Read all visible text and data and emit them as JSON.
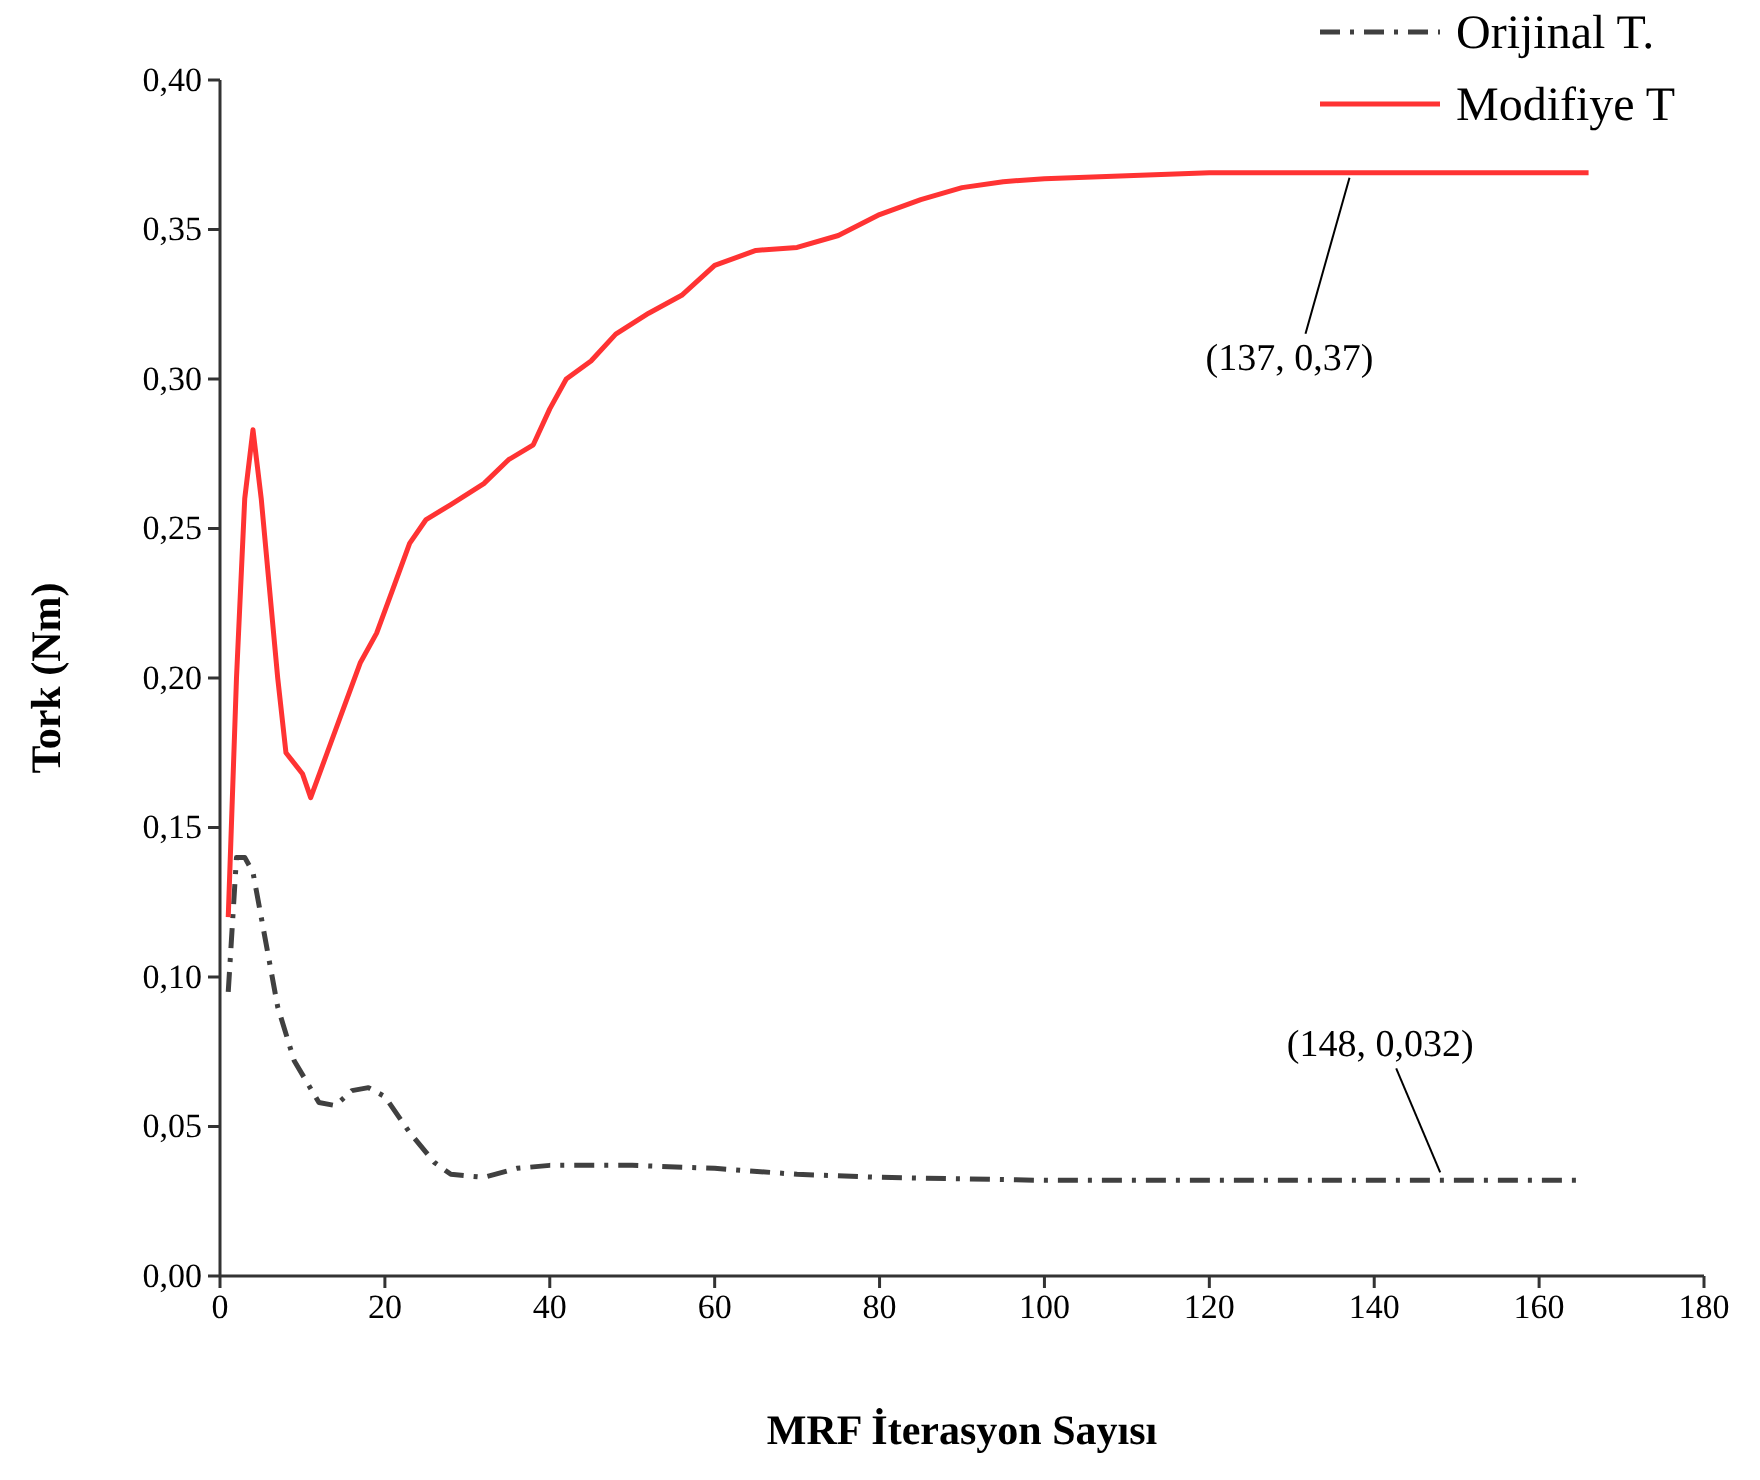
{
  "chart_data": {
    "type": "line",
    "xlabel": "MRF İterasyon Sayısı",
    "ylabel": "Tork (Nm)",
    "xlim": [
      0,
      180
    ],
    "xticks": [
      0,
      20,
      40,
      60,
      80,
      100,
      120,
      140,
      160,
      180
    ],
    "ylim": [
      0,
      0.4
    ],
    "yticks": [
      {
        "value": 0,
        "label": "0,00"
      },
      {
        "value": 0.05,
        "label": "0,05"
      },
      {
        "value": 0.1,
        "label": "0,10"
      },
      {
        "value": 0.15,
        "label": "0,15"
      },
      {
        "value": 0.2,
        "label": "0,20"
      },
      {
        "value": 0.25,
        "label": "0,25"
      },
      {
        "value": 0.3,
        "label": "0,30"
      },
      {
        "value": 0.35,
        "label": "0,35"
      },
      {
        "value": 0.4,
        "label": "0,40"
      }
    ],
    "grid": false,
    "legend": "top right",
    "series": [
      {
        "name": "Orijinal T.",
        "color": "#404040",
        "line_style": "dashdot",
        "x": [
          1,
          2,
          3,
          4,
          5,
          7,
          9,
          12,
          14,
          16,
          18,
          20,
          23,
          26,
          28,
          32,
          36,
          40,
          50,
          60,
          70,
          80,
          100,
          120,
          140,
          165
        ],
        "values": [
          0.095,
          0.14,
          0.14,
          0.135,
          0.12,
          0.09,
          0.072,
          0.058,
          0.057,
          0.062,
          0.063,
          0.06,
          0.048,
          0.038,
          0.034,
          0.033,
          0.036,
          0.037,
          0.037,
          0.036,
          0.034,
          0.033,
          0.032,
          0.032,
          0.032,
          0.032
        ]
      },
      {
        "name": "Modifiye T",
        "color": "#ff3333",
        "line_style": "solid",
        "x": [
          1,
          2,
          3,
          4,
          5,
          7,
          8,
          10,
          11,
          13,
          15,
          17,
          19,
          21,
          23,
          25,
          28,
          32,
          35,
          38,
          40,
          42,
          45,
          48,
          52,
          56,
          60,
          65,
          70,
          75,
          80,
          85,
          90,
          95,
          100,
          110,
          120,
          140,
          166
        ],
        "values": [
          0.12,
          0.2,
          0.26,
          0.283,
          0.26,
          0.2,
          0.175,
          0.168,
          0.16,
          0.175,
          0.19,
          0.205,
          0.215,
          0.23,
          0.245,
          0.253,
          0.258,
          0.265,
          0.273,
          0.278,
          0.29,
          0.3,
          0.306,
          0.315,
          0.322,
          0.328,
          0.338,
          0.343,
          0.344,
          0.348,
          0.355,
          0.36,
          0.364,
          0.366,
          0.367,
          0.368,
          0.369,
          0.369,
          0.369
        ]
      }
    ],
    "annotations": [
      {
        "text": "(137, 0,37)",
        "x": 137,
        "y": 0.37
      },
      {
        "text": "(148, 0,032)",
        "x": 148,
        "y": 0.032
      }
    ]
  }
}
